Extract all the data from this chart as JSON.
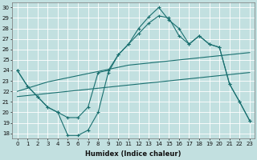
{
  "xlabel": "Humidex (Indice chaleur)",
  "bg_color": "#c2e0e0",
  "grid_color": "#ffffff",
  "line_color": "#1a7070",
  "xlim": [
    -0.5,
    23.5
  ],
  "ylim": [
    17.5,
    30.5
  ],
  "xticks": [
    0,
    1,
    2,
    3,
    4,
    5,
    6,
    7,
    8,
    9,
    10,
    11,
    12,
    13,
    14,
    15,
    16,
    17,
    18,
    19,
    20,
    21,
    22,
    23
  ],
  "yticks": [
    18,
    19,
    20,
    21,
    22,
    23,
    24,
    25,
    26,
    27,
    28,
    29,
    30
  ],
  "line1_x": [
    0,
    1,
    2,
    3,
    4,
    5,
    6,
    7,
    8,
    9,
    10,
    11,
    12,
    13,
    14,
    15,
    16,
    17,
    18,
    19,
    20,
    21,
    22,
    23
  ],
  "line1_y": [
    24.0,
    22.5,
    21.5,
    20.5,
    20.0,
    17.8,
    17.8,
    18.3,
    20.0,
    23.8,
    25.5,
    26.5,
    28.0,
    29.1,
    30.0,
    28.8,
    28.0,
    26.5,
    27.3,
    26.5,
    26.2,
    22.7,
    21.0,
    19.2
  ],
  "line2_x": [
    0,
    1,
    2,
    3,
    4,
    5,
    6,
    7,
    8,
    9,
    10,
    11,
    12,
    13,
    14,
    15,
    16,
    17,
    18,
    19,
    20,
    21,
    22,
    23
  ],
  "line2_y": [
    24.0,
    22.5,
    21.5,
    20.5,
    20.0,
    19.5,
    19.5,
    20.5,
    23.8,
    24.0,
    25.5,
    26.5,
    27.5,
    28.5,
    29.2,
    29.0,
    27.3,
    26.5,
    27.3,
    26.5,
    26.2,
    22.7,
    21.0,
    19.2
  ],
  "line3_x": [
    0,
    1,
    2,
    3,
    4,
    5,
    6,
    7,
    8,
    9,
    10,
    11,
    12,
    13,
    14,
    15,
    16,
    17,
    18,
    19,
    20,
    21,
    22,
    23
  ],
  "line3_y": [
    22.0,
    22.3,
    22.6,
    22.9,
    23.1,
    23.3,
    23.5,
    23.7,
    23.9,
    24.1,
    24.3,
    24.5,
    24.6,
    24.7,
    24.8,
    24.9,
    25.0,
    25.1,
    25.2,
    25.3,
    25.4,
    25.5,
    25.6,
    25.7
  ],
  "line4_x": [
    0,
    1,
    2,
    3,
    4,
    5,
    6,
    7,
    8,
    9,
    10,
    11,
    12,
    13,
    14,
    15,
    16,
    17,
    18,
    19,
    20,
    21,
    22,
    23
  ],
  "line4_y": [
    21.5,
    21.6,
    21.7,
    21.8,
    21.9,
    22.0,
    22.1,
    22.2,
    22.3,
    22.4,
    22.5,
    22.6,
    22.7,
    22.8,
    22.9,
    23.0,
    23.1,
    23.2,
    23.3,
    23.4,
    23.5,
    23.6,
    23.7,
    23.8
  ]
}
